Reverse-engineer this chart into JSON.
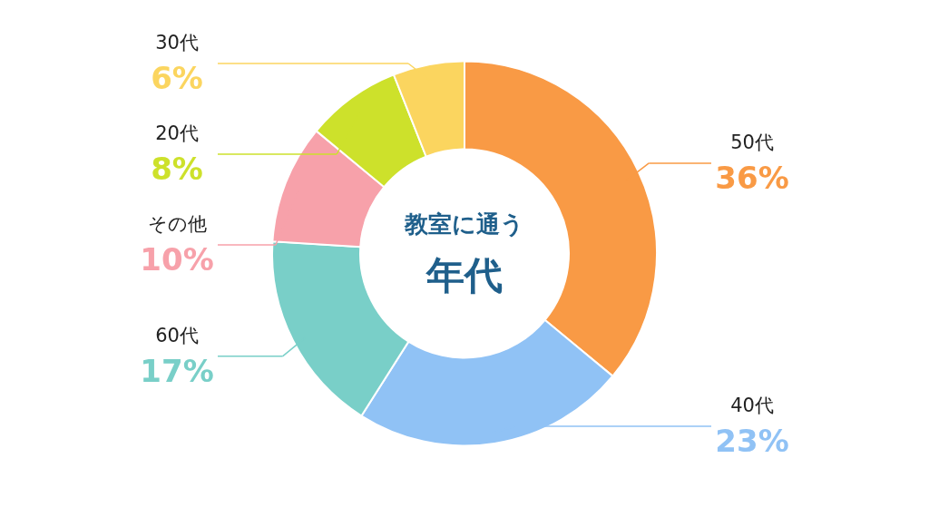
{
  "chart_data": {
    "type": "donut",
    "title": "教室に通う",
    "subtitle": "年代",
    "categories": [
      "50代",
      "40代",
      "60代",
      "その他",
      "20代",
      "30代"
    ],
    "values": [
      36,
      23,
      17,
      10,
      8,
      6
    ],
    "value_labels": [
      "36%",
      "23%",
      "17%",
      "10%",
      "8%",
      "6%"
    ],
    "colors": [
      "#f99a45",
      "#90c2f5",
      "#79cfc8",
      "#f7a1aa",
      "#cde12b",
      "#fbd55f"
    ]
  }
}
